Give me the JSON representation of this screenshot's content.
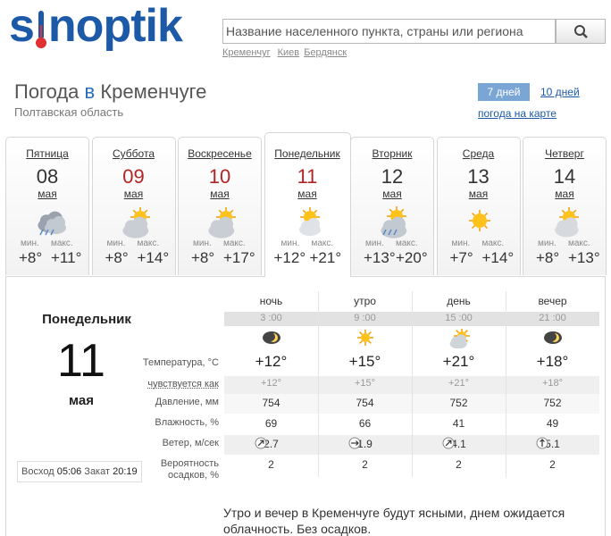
{
  "header": {
    "logo": [
      "s",
      "noptik"
    ],
    "search_placeholder": "Название населенного пункта, страны или региона",
    "recent": [
      "Кременчуг",
      "Киев",
      "Бердянск"
    ]
  },
  "title": {
    "prefix": "Погода",
    "preposition": "в",
    "city": "Кременчуге",
    "region": "Полтавская область"
  },
  "nav": {
    "tab_active": "7 дней",
    "tab_other": "10 дней",
    "map_link": "погода на карте"
  },
  "days": [
    {
      "day": "Пятница",
      "date": "08",
      "month": "мая",
      "min_label": "мин.",
      "max_label": "макс.",
      "min": "+8°",
      "max": "+11°"
    },
    {
      "day": "Суббота",
      "date": "09",
      "month": "мая",
      "min_label": "мин.",
      "max_label": "макс.",
      "min": "+8°",
      "max": "+14°"
    },
    {
      "day": "Воскресенье",
      "date": "10",
      "month": "мая",
      "min_label": "мин.",
      "max_label": "макс.",
      "min": "+8°",
      "max": "+17°"
    },
    {
      "day": "Понедельник",
      "date": "11",
      "month": "мая",
      "min_label": "мин.",
      "max_label": "макс.",
      "min": "+12°",
      "max": "+21°"
    },
    {
      "day": "Вторник",
      "date": "12",
      "month": "мая",
      "min_label": "мин.",
      "max_label": "макс.",
      "min": "+13°",
      "max": "+20°"
    },
    {
      "day": "Среда",
      "date": "13",
      "month": "мая",
      "min_label": "мин.",
      "max_label": "макс.",
      "min": "+7°",
      "max": "+14°"
    },
    {
      "day": "Четверг",
      "date": "14",
      "month": "мая",
      "min_label": "мин.",
      "max_label": "макс.",
      "min": "+8°",
      "max": "+13°"
    }
  ],
  "detail": {
    "day": "Понедельник",
    "date": "11",
    "month": "мая",
    "sunrise_label": "Восход",
    "sunrise": "05:06",
    "sunset_label": "Закат",
    "sunset": "20:19",
    "periods": [
      "ночь",
      "утро",
      "день",
      "вечер"
    ],
    "times": [
      "3 :00",
      "9 :00",
      "15 :00",
      "21 :00"
    ],
    "rows": [
      {
        "label": "Температура, °С",
        "values": [
          "+12°",
          "+15°",
          "+21°",
          "+18°"
        ]
      },
      {
        "label": "чувствуется как",
        "values": [
          "+12°",
          "+15°",
          "+21°",
          "+18°"
        ]
      },
      {
        "label": "Давление, мм",
        "values": [
          "754",
          "754",
          "752",
          "752"
        ]
      },
      {
        "label": "Влажность, %",
        "values": [
          "69",
          "66",
          "41",
          "49"
        ]
      },
      {
        "label": "Ветер, м/сек",
        "values": [
          "2.7",
          "1.9",
          "4.1",
          "5.1"
        ]
      },
      {
        "label": "Вероятность осадков, %",
        "values": [
          "2",
          "2",
          "2",
          "2"
        ]
      }
    ],
    "description": "Утро и вечер в Кременчуге будут ясными, днем ожидается облачность. Без осадков."
  }
}
